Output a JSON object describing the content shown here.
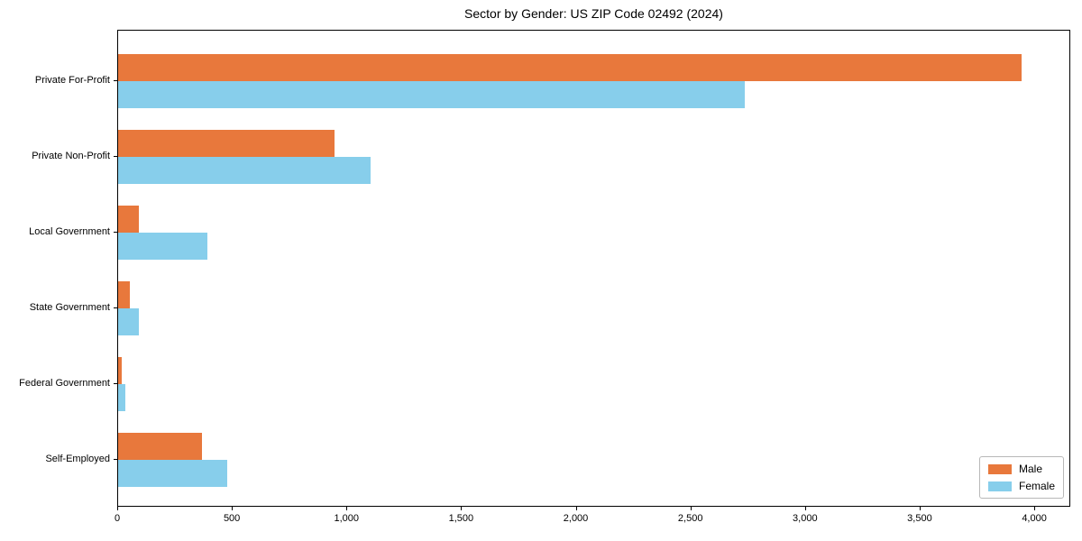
{
  "chart_data": {
    "type": "bar",
    "orientation": "horizontal",
    "title": "Sector by Gender: US ZIP Code 02492 (2024)",
    "xlabel": "",
    "ylabel": "",
    "categories": [
      "Private For-Profit",
      "Private Non-Profit",
      "Local Government",
      "State Government",
      "Federal Government",
      "Self-Employed"
    ],
    "series": [
      {
        "name": "Male",
        "color": "#E8783C",
        "values": [
          3950,
          945,
          90,
          50,
          15,
          365
        ]
      },
      {
        "name": "Female",
        "color": "#87CEEB",
        "values": [
          2740,
          1105,
          390,
          90,
          30,
          475
        ]
      }
    ],
    "xlim": [
      0,
      4157
    ],
    "xticks": [
      0,
      500,
      1000,
      1500,
      2000,
      2500,
      3000,
      3500,
      4000
    ],
    "xtick_labels": [
      "0",
      "500",
      "1,000",
      "1,500",
      "2,000",
      "2,500",
      "3,000",
      "3,500",
      "4,000"
    ],
    "grid": false,
    "legend": {
      "position": "lower-right",
      "entries": [
        "Male",
        "Female"
      ]
    }
  },
  "colors": {
    "male": "#E8783C",
    "female": "#87CEEB",
    "axis": "#000000",
    "background": "#FFFFFF",
    "legend_border": "#B8B8B8"
  }
}
